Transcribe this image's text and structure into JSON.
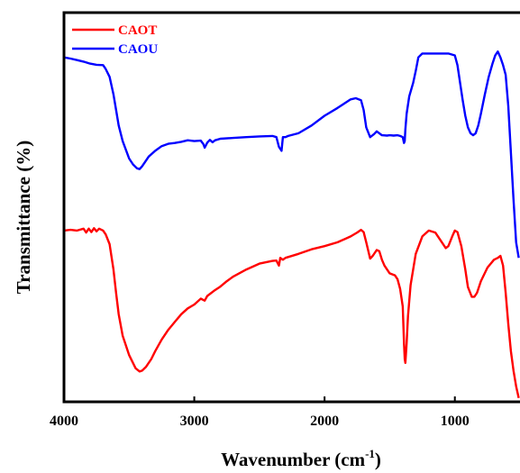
{
  "chart_data": {
    "type": "line",
    "title": "",
    "xlabel": "Wavenumber (cm",
    "xlabel_superscript": "-1",
    "xlabel_suffix": ")",
    "ylabel": "Transmittance (%)",
    "xlim": [
      4000,
      500
    ],
    "x_reversed": true,
    "x_ticks": [
      4000,
      3000,
      2000,
      1000
    ],
    "x_tick_labels": [
      "4000",
      "3000",
      "2000",
      "1000"
    ],
    "y_tick_labels_shown": false,
    "ylim": [
      0,
      100
    ],
    "grid": false,
    "legend_position": "top-left",
    "series": [
      {
        "name": "CAOT",
        "color": "#ff0000",
        "x": [
          4000,
          3950,
          3900,
          3850,
          3830,
          3810,
          3790,
          3770,
          3750,
          3730,
          3700,
          3680,
          3650,
          3620,
          3600,
          3580,
          3550,
          3500,
          3450,
          3420,
          3400,
          3370,
          3330,
          3300,
          3250,
          3200,
          3150,
          3100,
          3050,
          3000,
          2950,
          2920,
          2900,
          2850,
          2800,
          2750,
          2700,
          2600,
          2500,
          2400,
          2370,
          2350,
          2340,
          2320,
          2300,
          2200,
          2100,
          2000,
          1900,
          1800,
          1750,
          1720,
          1700,
          1680,
          1650,
          1630,
          1600,
          1580,
          1560,
          1540,
          1500,
          1460,
          1440,
          1420,
          1400,
          1390,
          1385,
          1380,
          1370,
          1360,
          1340,
          1300,
          1250,
          1200,
          1150,
          1100,
          1070,
          1050,
          1020,
          1000,
          980,
          950,
          920,
          900,
          870,
          850,
          830,
          800,
          750,
          700,
          670,
          650,
          630,
          610,
          590,
          570,
          550,
          530,
          510
        ],
        "values": [
          44.0,
          44.2,
          44.0,
          44.5,
          43.5,
          44.5,
          43.6,
          44.6,
          43.8,
          44.5,
          44.0,
          43.0,
          40.5,
          34.0,
          28.0,
          22.5,
          17.0,
          12.0,
          8.6,
          7.8,
          8.0,
          9.0,
          11.0,
          13.0,
          16.0,
          18.5,
          20.5,
          22.5,
          24.0,
          25.0,
          26.5,
          26.0,
          27.2,
          28.5,
          29.6,
          31.0,
          32.2,
          34.0,
          35.5,
          36.2,
          36.3,
          35.0,
          37.0,
          36.5,
          37.0,
          38.0,
          39.2,
          40.0,
          41.0,
          42.5,
          43.5,
          44.2,
          43.6,
          41.0,
          36.8,
          37.5,
          39.0,
          38.7,
          36.5,
          35.0,
          33.0,
          32.5,
          31.5,
          29.0,
          24.5,
          15.0,
          11.0,
          10.0,
          15.0,
          22.0,
          30.0,
          38.0,
          42.5,
          44.0,
          43.5,
          41.0,
          39.5,
          40.0,
          42.5,
          44.0,
          43.6,
          40.0,
          34.0,
          29.5,
          27.0,
          27.0,
          28.0,
          31.0,
          34.5,
          36.5,
          37.0,
          37.5,
          35.0,
          28.0,
          20.0,
          13.0,
          8.0,
          4.0,
          1.0
        ]
      },
      {
        "name": "CAOU",
        "color": "#0000ff",
        "x": [
          4000,
          3950,
          3900,
          3850,
          3800,
          3750,
          3700,
          3680,
          3650,
          3620,
          3600,
          3580,
          3550,
          3500,
          3470,
          3440,
          3420,
          3400,
          3380,
          3350,
          3300,
          3250,
          3200,
          3150,
          3100,
          3050,
          3000,
          2950,
          2930,
          2920,
          2900,
          2880,
          2860,
          2840,
          2800,
          2700,
          2600,
          2500,
          2400,
          2370,
          2350,
          2330,
          2320,
          2300,
          2280,
          2200,
          2100,
          2000,
          1900,
          1800,
          1760,
          1720,
          1700,
          1680,
          1650,
          1620,
          1600,
          1560,
          1520,
          1500,
          1470,
          1440,
          1420,
          1400,
          1390,
          1385,
          1380,
          1370,
          1350,
          1320,
          1300,
          1280,
          1250,
          1200,
          1150,
          1100,
          1050,
          1000,
          980,
          960,
          940,
          920,
          900,
          880,
          860,
          840,
          820,
          800,
          770,
          740,
          710,
          690,
          670,
          650,
          630,
          610,
          590,
          570,
          550,
          530,
          510
        ],
        "values": [
          88.5,
          88.2,
          87.8,
          87.4,
          86.9,
          86.6,
          86.5,
          85.5,
          83.5,
          79.0,
          75.0,
          71.0,
          67.0,
          62.5,
          61.0,
          60.0,
          59.8,
          60.5,
          61.5,
          63.0,
          64.5,
          65.7,
          66.3,
          66.5,
          66.8,
          67.2,
          67.0,
          67.1,
          66.2,
          65.3,
          66.6,
          67.3,
          66.7,
          67.2,
          67.6,
          67.8,
          68.0,
          68.2,
          68.3,
          68.0,
          65.5,
          64.5,
          68.0,
          68.0,
          68.3,
          69.0,
          71.0,
          73.5,
          75.5,
          77.7,
          78.0,
          77.5,
          75.0,
          70.5,
          68.0,
          68.8,
          69.5,
          68.5,
          68.4,
          68.5,
          68.4,
          68.5,
          68.3,
          68.0,
          66.5,
          67.0,
          70.0,
          74.0,
          78.5,
          82.0,
          85.0,
          88.5,
          89.5,
          89.5,
          89.5,
          89.5,
          89.5,
          89.0,
          86.5,
          82.0,
          77.5,
          73.5,
          70.5,
          69.0,
          68.5,
          69.0,
          71.0,
          74.0,
          79.0,
          83.5,
          87.0,
          89.0,
          90.0,
          88.5,
          86.5,
          84.0,
          76.0,
          64.0,
          52.0,
          41.0,
          37.0
        ]
      }
    ]
  }
}
